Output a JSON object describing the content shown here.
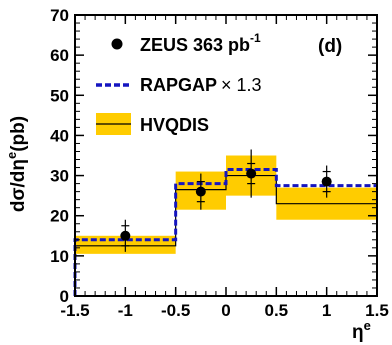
{
  "chart_data": {
    "type": "step-histogram",
    "xlabel": "η",
    "xlabel_sup": "e",
    "ylabel": "dσ/dη",
    "ylabel_sup": "e",
    "ylabel_suffix": "(pb)",
    "panel_label": "(d)",
    "xlim": [
      -1.5,
      1.5
    ],
    "ylim": [
      0,
      70
    ],
    "x_ticks": [
      "-1.5",
      "-1",
      "-0.5",
      "0",
      "0.5",
      "1",
      "1.5"
    ],
    "x_tick_values": [
      -1.5,
      -1,
      -0.5,
      0,
      0.5,
      1,
      1.5
    ],
    "y_ticks": [
      "0",
      "10",
      "20",
      "30",
      "40",
      "50",
      "60",
      "70"
    ],
    "y_tick_values": [
      0,
      10,
      20,
      30,
      40,
      50,
      60,
      70
    ],
    "bin_edges": [
      -1.5,
      -0.5,
      0,
      0.5,
      1.5
    ],
    "series": [
      {
        "name_main": "ZEUS 363 pb",
        "name_sup": "-1",
        "kind": "data-points",
        "x": [
          -1.0,
          -0.25,
          0.25,
          1.0
        ],
        "y": [
          15.0,
          26.0,
          30.5,
          28.5
        ],
        "stat_err": [
          2.5,
          2.5,
          2.5,
          2.5
        ],
        "total_err": [
          4.0,
          4.5,
          6.0,
          4.0
        ]
      },
      {
        "name_main": "RAPGAP",
        "name_suffix": "× 1.3",
        "kind": "dashed-step",
        "color": "#1515c0",
        "values": [
          14.0,
          28.0,
          31.5,
          27.5
        ]
      },
      {
        "name_main": "HVQDIS",
        "kind": "step-with-band",
        "line_color": "#000000",
        "band_color": "#ffcc00",
        "values": [
          12.5,
          26.5,
          30.0,
          23.0
        ],
        "band_low": [
          10.5,
          21.5,
          25.0,
          19.0
        ],
        "band_high": [
          15.0,
          31.0,
          35.0,
          27.0
        ]
      }
    ]
  }
}
